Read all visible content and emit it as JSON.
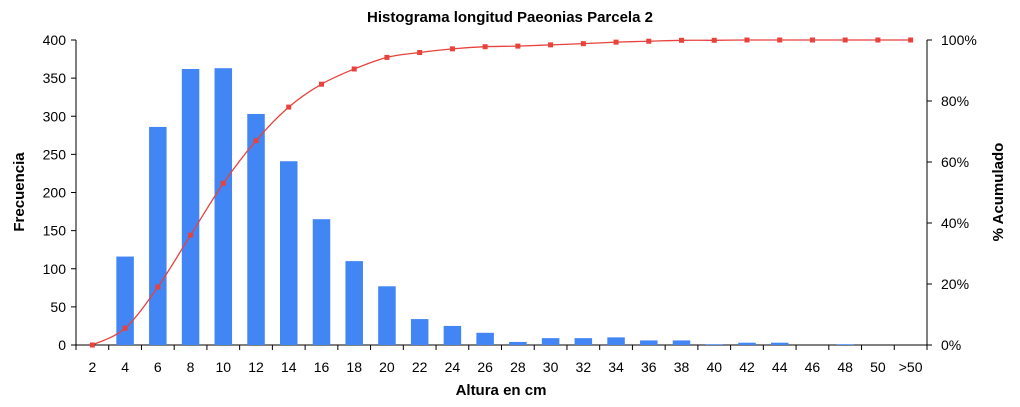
{
  "chart_data": {
    "type": "bar",
    "title": "Histograma longitud Paeonias Parcela 2",
    "xlabel": "Altura en cm",
    "ylabel": "Frecuencia",
    "y2label": "% Acumulado",
    "categories": [
      "2",
      "4",
      "6",
      "8",
      "10",
      "12",
      "14",
      "16",
      "18",
      "20",
      "22",
      "24",
      "26",
      "28",
      "30",
      "32",
      "34",
      "36",
      "38",
      "40",
      "42",
      "44",
      "46",
      "48",
      "50",
      ">50"
    ],
    "ylim": [
      0,
      400
    ],
    "yticks": [
      "0",
      "50",
      "100",
      "150",
      "200",
      "250",
      "300",
      "350",
      "400"
    ],
    "y2lim": [
      0,
      100
    ],
    "y2ticks": [
      "0%",
      "20%",
      "40%",
      "60%",
      "80%",
      "100%"
    ],
    "grid": false,
    "legend": "none",
    "series": [
      {
        "type": "bar",
        "color": "#4285f4",
        "values": [
          0,
          116,
          286,
          362,
          363,
          303,
          241,
          165,
          110,
          77,
          34,
          25,
          16,
          4,
          9,
          9,
          10,
          6,
          6,
          1,
          3,
          3,
          0,
          1,
          0,
          0
        ]
      },
      {
        "type": "line",
        "axis": "secondary",
        "color": "#e8423c",
        "values": [
          0,
          5.5,
          19,
          36,
          53,
          67,
          78,
          85.5,
          90.5,
          94.3,
          95.9,
          97.1,
          97.8,
          98.0,
          98.4,
          98.8,
          99.3,
          99.6,
          99.9,
          99.9,
          100,
          100,
          100,
          100,
          100,
          100
        ]
      }
    ]
  }
}
